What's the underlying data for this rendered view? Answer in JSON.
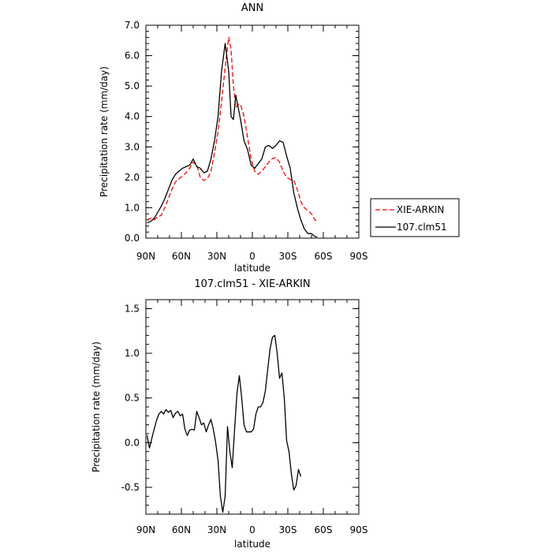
{
  "chart_data": [
    {
      "type": "line",
      "title": "ANN",
      "xlabel": "latitude",
      "ylabel": "Precipitation rate  (mm/day)",
      "xlim": [
        -90,
        90
      ],
      "ylim": [
        0,
        7
      ],
      "x_ticks": [
        {
          "value": -90,
          "label": "90N"
        },
        {
          "value": -60,
          "label": "60N"
        },
        {
          "value": -30,
          "label": "30N"
        },
        {
          "value": 0,
          "label": "0"
        },
        {
          "value": 30,
          "label": "30S"
        },
        {
          "value": 60,
          "label": "60S"
        },
        {
          "value": 90,
          "label": "90S"
        }
      ],
      "y_ticks": [
        {
          "value": 0,
          "label": "0.0"
        },
        {
          "value": 1,
          "label": "1.0"
        },
        {
          "value": 2,
          "label": "2.0"
        },
        {
          "value": 3,
          "label": "3.0"
        },
        {
          "value": 4,
          "label": "4.0"
        },
        {
          "value": 5,
          "label": "5.0"
        },
        {
          "value": 6,
          "label": "6.0"
        },
        {
          "value": 7,
          "label": "7.0"
        }
      ],
      "legend_position": "right",
      "series": [
        {
          "name": "XIE-ARKIN",
          "color": "#ff0000",
          "dash": "dashed",
          "points": [
            [
              -89,
              0.6
            ],
            [
              -86,
              0.65
            ],
            [
              -83,
              0.6
            ],
            [
              -80,
              0.7
            ],
            [
              -77,
              0.75
            ],
            [
              -74,
              1.0
            ],
            [
              -71,
              1.3
            ],
            [
              -68,
              1.6
            ],
            [
              -65,
              1.85
            ],
            [
              -62,
              1.95
            ],
            [
              -59,
              2.05
            ],
            [
              -56,
              2.15
            ],
            [
              -53,
              2.3
            ],
            [
              -50,
              2.5
            ],
            [
              -47,
              2.4
            ],
            [
              -44,
              2.0
            ],
            [
              -41,
              1.9
            ],
            [
              -38,
              1.95
            ],
            [
              -35,
              2.2
            ],
            [
              -32,
              2.8
            ],
            [
              -29,
              3.5
            ],
            [
              -26,
              4.5
            ],
            [
              -23,
              5.6
            ],
            [
              -20,
              6.6
            ],
            [
              -18,
              6.2
            ],
            [
              -16,
              5.0
            ],
            [
              -14,
              4.3
            ],
            [
              -12,
              4.4
            ],
            [
              -10,
              4.4
            ],
            [
              -7,
              4.0
            ],
            [
              -4,
              3.3
            ],
            [
              -1,
              2.6
            ],
            [
              2,
              2.2
            ],
            [
              5,
              2.1
            ],
            [
              8,
              2.2
            ],
            [
              11,
              2.35
            ],
            [
              14,
              2.5
            ],
            [
              17,
              2.62
            ],
            [
              20,
              2.65
            ],
            [
              23,
              2.5
            ],
            [
              26,
              2.2
            ],
            [
              29,
              2.0
            ],
            [
              32,
              1.93
            ],
            [
              35,
              1.9
            ],
            [
              38,
              1.6
            ],
            [
              41,
              1.2
            ],
            [
              44,
              1.0
            ],
            [
              47,
              0.9
            ],
            [
              50,
              0.8
            ],
            [
              53,
              0.6
            ],
            [
              55,
              0.55
            ]
          ]
        },
        {
          "name": "107.clm51",
          "color": "#000000",
          "dash": "solid",
          "points": [
            [
              -89,
              0.5
            ],
            [
              -86,
              0.55
            ],
            [
              -83,
              0.65
            ],
            [
              -80,
              0.85
            ],
            [
              -77,
              1.05
            ],
            [
              -74,
              1.3
            ],
            [
              -71,
              1.6
            ],
            [
              -68,
              1.9
            ],
            [
              -65,
              2.1
            ],
            [
              -62,
              2.2
            ],
            [
              -59,
              2.3
            ],
            [
              -56,
              2.35
            ],
            [
              -53,
              2.4
            ],
            [
              -50,
              2.6
            ],
            [
              -47,
              2.35
            ],
            [
              -44,
              2.3
            ],
            [
              -41,
              2.15
            ],
            [
              -38,
              2.2
            ],
            [
              -35,
              2.6
            ],
            [
              -32,
              3.2
            ],
            [
              -29,
              4.0
            ],
            [
              -26,
              5.5
            ],
            [
              -23,
              6.4
            ],
            [
              -20,
              5.5
            ],
            [
              -18,
              4.0
            ],
            [
              -16,
              3.9
            ],
            [
              -14,
              4.7
            ],
            [
              -12,
              4.3
            ],
            [
              -10,
              3.9
            ],
            [
              -7,
              3.2
            ],
            [
              -4,
              2.9
            ],
            [
              -1,
              2.4
            ],
            [
              2,
              2.3
            ],
            [
              5,
              2.45
            ],
            [
              8,
              2.6
            ],
            [
              11,
              3.0
            ],
            [
              14,
              3.05
            ],
            [
              17,
              2.95
            ],
            [
              20,
              3.05
            ],
            [
              23,
              3.2
            ],
            [
              26,
              3.15
            ],
            [
              29,
              2.7
            ],
            [
              32,
              2.3
            ],
            [
              35,
              1.5
            ],
            [
              38,
              1.0
            ],
            [
              41,
              0.6
            ],
            [
              44,
              0.3
            ],
            [
              47,
              0.15
            ],
            [
              50,
              0.15
            ],
            [
              53,
              0.05
            ],
            [
              55,
              0.05
            ]
          ]
        }
      ]
    },
    {
      "type": "line",
      "title": "107.clm51 - XIE-ARKIN",
      "xlabel": "latitude",
      "ylabel": "Precipitation rate  (mm/day)",
      "xlim": [
        -90,
        90
      ],
      "ylim": [
        -0.8,
        1.6
      ],
      "x_ticks": [
        {
          "value": -90,
          "label": "90N"
        },
        {
          "value": -60,
          "label": "60N"
        },
        {
          "value": -30,
          "label": "30N"
        },
        {
          "value": 0,
          "label": "0"
        },
        {
          "value": 30,
          "label": "30S"
        },
        {
          "value": 60,
          "label": "60S"
        },
        {
          "value": 90,
          "label": "90S"
        }
      ],
      "y_ticks": [
        {
          "value": -0.5,
          "label": "-0.5"
        },
        {
          "value": 0.0,
          "label": "0.0"
        },
        {
          "value": 0.5,
          "label": "0.5"
        },
        {
          "value": 1.0,
          "label": "1.0"
        },
        {
          "value": 1.5,
          "label": "1.5"
        }
      ],
      "series": [
        {
          "name": "",
          "color": "#000000",
          "dash": "solid",
          "points": [
            [
              -89,
              0.08
            ],
            [
              -87,
              -0.06
            ],
            [
              -84,
              0.1
            ],
            [
              -81,
              0.25
            ],
            [
              -79,
              0.32
            ],
            [
              -77,
              0.35
            ],
            [
              -75,
              0.32
            ],
            [
              -73,
              0.37
            ],
            [
              -71,
              0.34
            ],
            [
              -69,
              0.36
            ],
            [
              -67,
              0.28
            ],
            [
              -65,
              0.33
            ],
            [
              -63,
              0.35
            ],
            [
              -61,
              0.3
            ],
            [
              -59,
              0.32
            ],
            [
              -57,
              0.15
            ],
            [
              -55,
              0.08
            ],
            [
              -53,
              0.14
            ],
            [
              -51,
              0.15
            ],
            [
              -49,
              0.14
            ],
            [
              -47,
              0.35
            ],
            [
              -45,
              0.28
            ],
            [
              -43,
              0.2
            ],
            [
              -41,
              0.22
            ],
            [
              -39,
              0.12
            ],
            [
              -37,
              0.2
            ],
            [
              -35,
              0.26
            ],
            [
              -33,
              0.15
            ],
            [
              -31,
              0.0
            ],
            [
              -29,
              -0.2
            ],
            [
              -27,
              -0.6
            ],
            [
              -25,
              -0.78
            ],
            [
              -23,
              -0.6
            ],
            [
              -21,
              0.18
            ],
            [
              -19,
              -0.1
            ],
            [
              -17,
              -0.28
            ],
            [
              -15,
              0.15
            ],
            [
              -13,
              0.55
            ],
            [
              -11,
              0.75
            ],
            [
              -9,
              0.5
            ],
            [
              -7,
              0.2
            ],
            [
              -5,
              0.12
            ],
            [
              -3,
              0.12
            ],
            [
              -1,
              0.12
            ],
            [
              1,
              0.15
            ],
            [
              3,
              0.32
            ],
            [
              5,
              0.4
            ],
            [
              7,
              0.4
            ],
            [
              9,
              0.45
            ],
            [
              11,
              0.58
            ],
            [
              13,
              0.82
            ],
            [
              15,
              1.05
            ],
            [
              17,
              1.18
            ],
            [
              19,
              1.2
            ],
            [
              21,
              1.0
            ],
            [
              23,
              0.72
            ],
            [
              25,
              0.78
            ],
            [
              27,
              0.5
            ],
            [
              29,
              0.02
            ],
            [
              31,
              -0.1
            ],
            [
              33,
              -0.35
            ],
            [
              35,
              -0.53
            ],
            [
              37,
              -0.48
            ],
            [
              39,
              -0.3
            ],
            [
              41,
              -0.38
            ]
          ]
        }
      ]
    }
  ]
}
